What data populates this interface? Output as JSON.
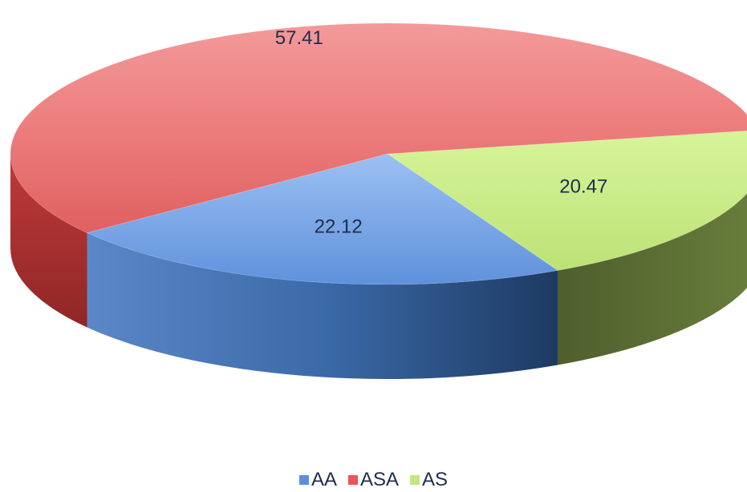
{
  "chart_data": {
    "type": "pie",
    "title": "",
    "categories": [
      "AA",
      "ASA",
      "AS"
    ],
    "values": [
      22.12,
      57.41,
      20.47
    ],
    "data_labels": [
      "22.12",
      "57.41",
      "20.47"
    ],
    "colors": [
      "#5b8fe0",
      "#ea5555",
      "#c2e77e"
    ],
    "legend": {
      "placement": "bottom",
      "entries": [
        "AA",
        "ASA",
        "AS"
      ]
    },
    "style": "3d"
  }
}
